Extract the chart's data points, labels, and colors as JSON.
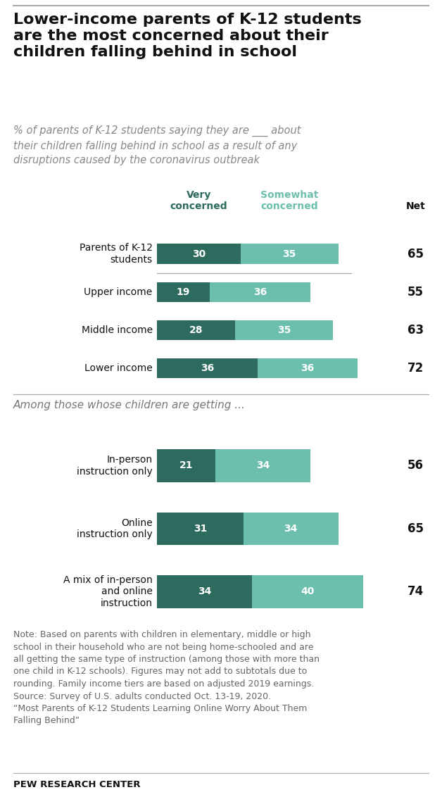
{
  "title": "Lower-income parents of K-12 students\nare the most concerned about their\nchildren falling behind in school",
  "subtitle": "% of parents of K-12 students saying they are ___ about\ntheir children falling behind in school as a result of any\ndisruptions caused by the coronavirus outbreak",
  "col_header_very": "Very\nconcerned",
  "col_header_somewhat": "Somewhat\nconcerned",
  "col_header_net": "Net",
  "section2_label": "Among those whose children are getting ...",
  "categories_1": [
    "Parents of K-12\nstudents",
    "Upper income",
    "Middle income",
    "Lower income"
  ],
  "very_1": [
    30,
    19,
    28,
    36
  ],
  "somewhat_1": [
    35,
    36,
    35,
    36
  ],
  "net_1": [
    65,
    55,
    63,
    72
  ],
  "categories_2": [
    "In-person\ninstruction only",
    "Online\ninstruction only",
    "A mix of in-person\nand online\ninstruction"
  ],
  "very_2": [
    21,
    31,
    34
  ],
  "somewhat_2": [
    34,
    34,
    40
  ],
  "net_2": [
    56,
    65,
    74
  ],
  "color_very": "#2d6b5e",
  "color_somewhat": "#6dbfad",
  "note_text": "Note: Based on parents with children in elementary, middle or high\nschool in their household who are not being home-schooled and are\nall getting the same type of instruction (among those with more than\none child in K-12 schools). Figures may not add to subtotals due to\nrounding. Family income tiers are based on adjusted 2019 earnings.\nSource: Survey of U.S. adults conducted Oct. 13-19, 2020.\n“Most Parents of K-12 Students Learning Online Worry About Them\nFalling Behind”",
  "pew_label": "PEW RESEARCH CENTER",
  "bar_height": 0.52,
  "xlim": 80,
  "figsize": [
    6.28,
    11.42
  ],
  "dpi": 100
}
